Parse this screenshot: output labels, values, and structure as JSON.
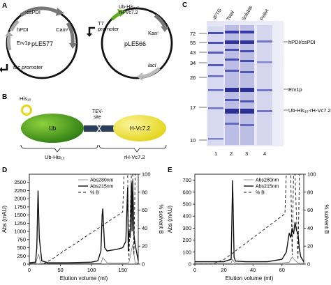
{
  "panels": {
    "A": {
      "letter": "A",
      "plasmid1": {
        "name": "pLE577",
        "genes": [
          "csPDI",
          "hPDI",
          "Erv1p",
          "Camʳ"
        ],
        "promoter": "tac promoter"
      },
      "plasmid2": {
        "name": "pLE566",
        "insert_line1": "Ub-His₁₀-",
        "insert_line2": "rH-Vc7.2",
        "promoter_line1": "T7",
        "promoter_line2": "promoter",
        "resistance": "Kanʳ",
        "repressor": "lacI"
      }
    },
    "B": {
      "letter": "B",
      "tag": "His₁₀",
      "domain1": "Ub",
      "linker_line1": "TEV-",
      "linker_line2": "site",
      "domain2": "H-Vc7.2",
      "brace_left": "Ub-His₁₀",
      "brace_right": "rH-Vc7.2"
    },
    "C": {
      "letter": "C",
      "lane_headers": [
        "-IPTG",
        "Total",
        "Soluble",
        "Pellet"
      ],
      "mw_markers": [
        "72",
        "55",
        "43",
        "34",
        "26",
        "17",
        "10"
      ],
      "band_labels": [
        "hPDI/csPDI",
        "Erv1p",
        "Ub-His₁₀-rH-Vc7.2"
      ],
      "lane_numbers": [
        "1",
        "2",
        "3",
        "4"
      ]
    },
    "D": {
      "letter": "D",
      "legend": [
        "Abs280nm",
        "Abs215nm",
        "% B"
      ]
    },
    "E": {
      "letter": "E",
      "legend": [
        "Abs280nm",
        "Abs215nm",
        "% B"
      ]
    }
  },
  "chart_data": [
    {
      "type": "line",
      "panel": "D",
      "xlabel": "Elution volume (ml)",
      "ylabel": "Abs (mAU)",
      "ylabel_right": "% solvent B",
      "xlim": [
        0,
        175
      ],
      "ylim": [
        0,
        2750
      ],
      "ylim_right": [
        0,
        100
      ],
      "xticks": [
        0,
        50,
        100,
        150
      ],
      "yticks": [
        0,
        250,
        500,
        750,
        1000,
        1250,
        1500,
        1750,
        2000,
        2250,
        2500
      ],
      "yticks_right": [
        0,
        20,
        40,
        60,
        80,
        100
      ],
      "legend_position": "top-center",
      "series": [
        {
          "name": "Abs280nm",
          "style": "solid-thin",
          "x": [
            0,
            10,
            13,
            15,
            18,
            25,
            50,
            100,
            115,
            118,
            120,
            125,
            140,
            150,
            160,
            166,
            168,
            170,
            175
          ],
          "y": [
            20,
            20,
            200,
            300,
            40,
            20,
            20,
            20,
            20,
            200,
            150,
            40,
            30,
            30,
            40,
            600,
            300,
            40,
            20
          ]
        },
        {
          "name": "Abs215nm",
          "style": "solid-thick",
          "x": [
            0,
            10,
            12,
            14,
            16,
            20,
            30,
            60,
            100,
            110,
            115,
            117,
            118,
            119,
            121,
            125,
            130,
            140,
            150,
            155,
            158,
            159,
            160,
            162,
            164,
            165,
            166,
            167,
            168,
            170,
            173,
            175
          ],
          "y": [
            40,
            60,
            500,
            2250,
            800,
            100,
            40,
            40,
            60,
            100,
            400,
            1500,
            1700,
            1250,
            500,
            400,
            420,
            450,
            500,
            700,
            2350,
            400,
            1000,
            800,
            2500,
            1000,
            2550,
            1800,
            900,
            600,
            300,
            100
          ]
        },
        {
          "name": "% B",
          "style": "dashed",
          "x": [
            0,
            22,
            35,
            150,
            152,
            158,
            160,
            164,
            166,
            168,
            170,
            172
          ],
          "y": [
            0,
            0,
            5,
            58,
            100,
            100,
            5,
            100,
            100,
            10,
            100,
            100
          ]
        }
      ]
    },
    {
      "type": "line",
      "panel": "E",
      "xlabel": "Elution volume (ml)",
      "ylabel": "Abs (mAU)",
      "ylabel_right": "% solvent B",
      "xlim": [
        0,
        75
      ],
      "ylim": [
        0,
        750
      ],
      "ylim_right": [
        0,
        100
      ],
      "xticks": [
        0,
        20,
        40,
        60
      ],
      "yticks": [
        0,
        100,
        200,
        300,
        400,
        500,
        600,
        700
      ],
      "yticks_right": [
        0,
        20,
        40,
        60,
        80,
        100
      ],
      "legend_position": "top-center",
      "series": [
        {
          "name": "Abs280nm",
          "style": "solid-thin",
          "x": [
            0,
            20,
            25,
            26,
            27,
            28,
            40,
            60,
            65,
            67,
            69,
            71,
            75
          ],
          "y": [
            10,
            10,
            10,
            40,
            15,
            10,
            10,
            10,
            15,
            60,
            30,
            10,
            10
          ]
        },
        {
          "name": "Abs215nm",
          "style": "solid-thick",
          "x": [
            0,
            20,
            25,
            26,
            27,
            28,
            35,
            50,
            60,
            63,
            65,
            66,
            67,
            68,
            69,
            70,
            71,
            72,
            73,
            75
          ],
          "y": [
            20,
            20,
            40,
            700,
            60,
            25,
            20,
            20,
            40,
            100,
            260,
            220,
            300,
            250,
            350,
            280,
            260,
            120,
            60,
            20
          ]
        },
        {
          "name": "% B",
          "style": "dashed",
          "x": [
            0,
            12,
            20,
            62,
            63,
            66,
            67,
            68,
            69,
            71,
            72,
            73
          ],
          "y": [
            0,
            0,
            5,
            56,
            100,
            100,
            10,
            100,
            100,
            5,
            100,
            100
          ]
        }
      ]
    }
  ]
}
